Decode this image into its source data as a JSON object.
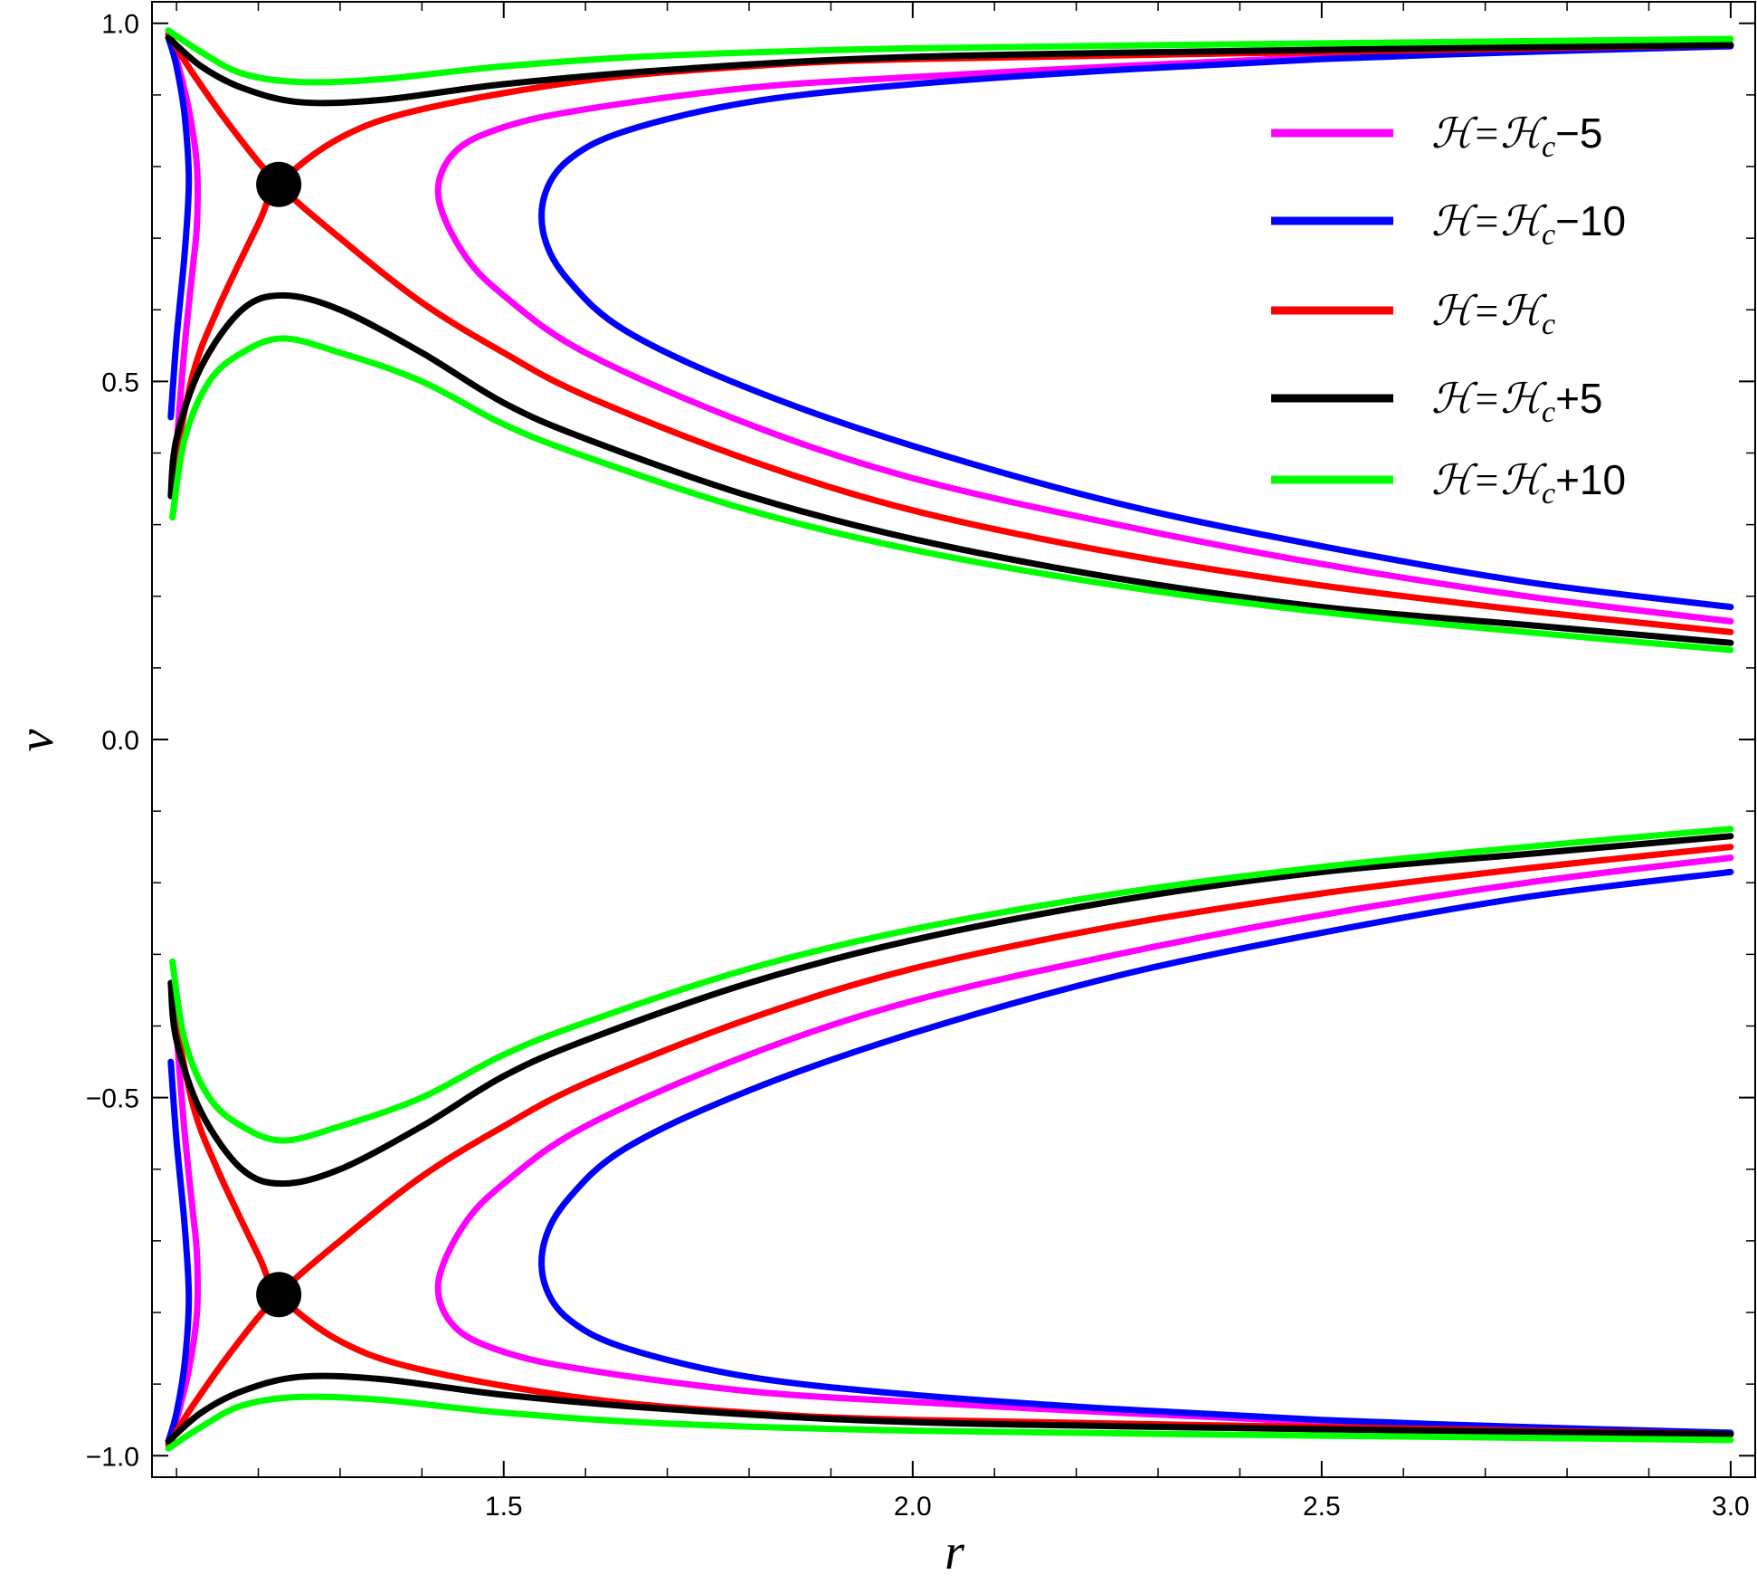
{
  "chart_data": {
    "type": "line",
    "title": "",
    "xlabel": "r",
    "ylabel": "v",
    "xlim": [
      1.07,
      3.03
    ],
    "ylim": [
      -1.03,
      1.03
    ],
    "x_major_ticks": [
      1.5,
      2.0,
      2.5,
      3.0
    ],
    "x_tick_labels": [
      "1.5",
      "2.0",
      "2.5",
      "3.0"
    ],
    "y_major_ticks": [
      -1.0,
      -0.5,
      0.0,
      0.5,
      1.0
    ],
    "y_tick_labels": [
      "−1.0",
      "−0.5",
      "0.0",
      "0.5",
      "1.0"
    ],
    "grid": false,
    "legend_position": "top-right",
    "critical_points": [
      {
        "x": 1.225,
        "y": 0.775
      },
      {
        "x": 1.225,
        "y": -0.775
      }
    ],
    "series": [
      {
        "name": "ℋ=ℋc−5",
        "color": "#ff00ff",
        "branches": [
          [
            [
              1.1,
              0.41
            ],
            [
              1.11,
              0.55
            ],
            [
              1.12,
              0.66
            ],
            [
              1.125,
              0.72
            ],
            [
              1.125,
              0.8
            ],
            [
              1.115,
              0.88
            ],
            [
              1.1,
              0.95
            ],
            [
              1.09,
              0.985
            ]
          ],
          [
            [
              3.0,
              0.165
            ],
            [
              2.75,
              0.2
            ],
            [
              2.5,
              0.245
            ],
            [
              2.25,
              0.3
            ],
            [
              2.0,
              0.365
            ],
            [
              1.8,
              0.44
            ],
            [
              1.6,
              0.54
            ],
            [
              1.5,
              0.62
            ],
            [
              1.45,
              0.68
            ],
            [
              1.42,
              0.76
            ],
            [
              1.44,
              0.82
            ],
            [
              1.5,
              0.855
            ],
            [
              1.6,
              0.88
            ],
            [
              1.8,
              0.91
            ],
            [
              2.0,
              0.925
            ],
            [
              2.25,
              0.94
            ],
            [
              2.5,
              0.953
            ],
            [
              2.75,
              0.962
            ],
            [
              3.0,
              0.97
            ]
          ],
          [
            [
              1.1,
              -0.41
            ],
            [
              1.11,
              -0.55
            ],
            [
              1.12,
              -0.66
            ],
            [
              1.125,
              -0.72
            ],
            [
              1.125,
              -0.8
            ],
            [
              1.115,
              -0.88
            ],
            [
              1.1,
              -0.95
            ],
            [
              1.09,
              -0.985
            ]
          ],
          [
            [
              3.0,
              -0.165
            ],
            [
              2.75,
              -0.2
            ],
            [
              2.5,
              -0.245
            ],
            [
              2.25,
              -0.3
            ],
            [
              2.0,
              -0.365
            ],
            [
              1.8,
              -0.44
            ],
            [
              1.6,
              -0.54
            ],
            [
              1.5,
              -0.62
            ],
            [
              1.45,
              -0.68
            ],
            [
              1.42,
              -0.76
            ],
            [
              1.44,
              -0.82
            ],
            [
              1.5,
              -0.855
            ],
            [
              1.6,
              -0.88
            ],
            [
              1.8,
              -0.91
            ],
            [
              2.0,
              -0.925
            ],
            [
              2.25,
              -0.94
            ],
            [
              2.5,
              -0.953
            ],
            [
              2.75,
              -0.962
            ],
            [
              3.0,
              -0.97
            ]
          ]
        ]
      },
      {
        "name": "ℋ=ℋc−10",
        "color": "#0000ff",
        "branches": [
          [
            [
              1.093,
              0.45
            ],
            [
              1.1,
              0.56
            ],
            [
              1.11,
              0.68
            ],
            [
              1.115,
              0.78
            ],
            [
              1.11,
              0.87
            ],
            [
              1.1,
              0.94
            ],
            [
              1.09,
              0.98
            ]
          ],
          [
            [
              3.0,
              0.185
            ],
            [
              2.75,
              0.22
            ],
            [
              2.5,
              0.27
            ],
            [
              2.25,
              0.33
            ],
            [
              2.0,
              0.41
            ],
            [
              1.8,
              0.49
            ],
            [
              1.65,
              0.57
            ],
            [
              1.58,
              0.64
            ],
            [
              1.55,
              0.7
            ],
            [
              1.55,
              0.76
            ],
            [
              1.58,
              0.81
            ],
            [
              1.65,
              0.85
            ],
            [
              1.8,
              0.89
            ],
            [
              2.0,
              0.915
            ],
            [
              2.25,
              0.935
            ],
            [
              2.5,
              0.95
            ],
            [
              2.75,
              0.96
            ],
            [
              3.0,
              0.968
            ]
          ],
          [
            [
              1.093,
              -0.45
            ],
            [
              1.1,
              -0.56
            ],
            [
              1.11,
              -0.68
            ],
            [
              1.115,
              -0.78
            ],
            [
              1.11,
              -0.87
            ],
            [
              1.1,
              -0.94
            ],
            [
              1.09,
              -0.98
            ]
          ],
          [
            [
              3.0,
              -0.185
            ],
            [
              2.75,
              -0.22
            ],
            [
              2.5,
              -0.27
            ],
            [
              2.25,
              -0.33
            ],
            [
              2.0,
              -0.41
            ],
            [
              1.8,
              -0.49
            ],
            [
              1.65,
              -0.57
            ],
            [
              1.58,
              -0.64
            ],
            [
              1.55,
              -0.7
            ],
            [
              1.55,
              -0.76
            ],
            [
              1.58,
              -0.81
            ],
            [
              1.65,
              -0.85
            ],
            [
              1.8,
              -0.89
            ],
            [
              2.0,
              -0.915
            ],
            [
              2.25,
              -0.935
            ],
            [
              2.5,
              -0.95
            ],
            [
              2.75,
              -0.96
            ],
            [
              3.0,
              -0.968
            ]
          ]
        ]
      },
      {
        "name": "ℋ=ℋc",
        "color": "#ff0000",
        "branches": [
          [
            [
              1.095,
              0.37
            ],
            [
              1.12,
              0.51
            ],
            [
              1.15,
              0.6
            ],
            [
              1.2,
              0.72
            ],
            [
              1.225,
              0.775
            ],
            [
              1.3,
              0.84
            ],
            [
              1.4,
              0.88
            ],
            [
              1.6,
              0.92
            ],
            [
              1.8,
              0.94
            ],
            [
              2.0,
              0.95
            ],
            [
              2.5,
              0.96
            ],
            [
              3.0,
              0.97
            ]
          ],
          [
            [
              1.09,
              0.985
            ],
            [
              1.12,
              0.93
            ],
            [
              1.17,
              0.85
            ],
            [
              1.225,
              0.775
            ],
            [
              1.3,
              0.7
            ],
            [
              1.4,
              0.61
            ],
            [
              1.5,
              0.54
            ],
            [
              1.6,
              0.48
            ],
            [
              1.8,
              0.39
            ],
            [
              2.0,
              0.32
            ],
            [
              2.25,
              0.26
            ],
            [
              2.5,
              0.215
            ],
            [
              2.75,
              0.18
            ],
            [
              3.0,
              0.15
            ]
          ],
          [
            [
              1.095,
              -0.37
            ],
            [
              1.12,
              -0.51
            ],
            [
              1.15,
              -0.6
            ],
            [
              1.2,
              -0.72
            ],
            [
              1.225,
              -0.775
            ],
            [
              1.3,
              -0.84
            ],
            [
              1.4,
              -0.88
            ],
            [
              1.6,
              -0.92
            ],
            [
              1.8,
              -0.94
            ],
            [
              2.0,
              -0.95
            ],
            [
              2.5,
              -0.96
            ],
            [
              3.0,
              -0.97
            ]
          ],
          [
            [
              1.09,
              -0.985
            ],
            [
              1.12,
              -0.93
            ],
            [
              1.17,
              -0.85
            ],
            [
              1.225,
              -0.775
            ],
            [
              1.3,
              -0.7
            ],
            [
              1.4,
              -0.61
            ],
            [
              1.5,
              -0.54
            ],
            [
              1.6,
              -0.48
            ],
            [
              1.8,
              -0.39
            ],
            [
              2.0,
              -0.32
            ],
            [
              2.25,
              -0.26
            ],
            [
              2.5,
              -0.215
            ],
            [
              2.75,
              -0.18
            ],
            [
              3.0,
              -0.15
            ]
          ]
        ]
      },
      {
        "name": "ℋ=ℋc+5",
        "color": "#000000",
        "branches": [
          [
            [
              1.093,
              0.34
            ],
            [
              1.1,
              0.42
            ],
            [
              1.13,
              0.52
            ],
            [
              1.18,
              0.6
            ],
            [
              1.23,
              0.62
            ],
            [
              1.3,
              0.6
            ],
            [
              1.4,
              0.54
            ],
            [
              1.5,
              0.47
            ],
            [
              1.6,
              0.42
            ],
            [
              1.8,
              0.34
            ],
            [
              2.0,
              0.28
            ],
            [
              2.25,
              0.225
            ],
            [
              2.5,
              0.185
            ],
            [
              2.75,
              0.16
            ],
            [
              3.0,
              0.135
            ]
          ],
          [
            [
              1.09,
              0.98
            ],
            [
              1.13,
              0.94
            ],
            [
              1.18,
              0.91
            ],
            [
              1.25,
              0.89
            ],
            [
              1.35,
              0.893
            ],
            [
              1.5,
              0.915
            ],
            [
              1.7,
              0.935
            ],
            [
              2.0,
              0.953
            ],
            [
              2.5,
              0.963
            ],
            [
              3.0,
              0.97
            ]
          ],
          [
            [
              1.093,
              -0.34
            ],
            [
              1.1,
              -0.42
            ],
            [
              1.13,
              -0.52
            ],
            [
              1.18,
              -0.6
            ],
            [
              1.23,
              -0.62
            ],
            [
              1.3,
              -0.6
            ],
            [
              1.4,
              -0.54
            ],
            [
              1.5,
              -0.47
            ],
            [
              1.6,
              -0.42
            ],
            [
              1.8,
              -0.34
            ],
            [
              2.0,
              -0.28
            ],
            [
              2.25,
              -0.225
            ],
            [
              2.5,
              -0.185
            ],
            [
              2.75,
              -0.16
            ],
            [
              3.0,
              -0.135
            ]
          ],
          [
            [
              1.09,
              -0.98
            ],
            [
              1.13,
              -0.94
            ],
            [
              1.18,
              -0.91
            ],
            [
              1.25,
              -0.89
            ],
            [
              1.35,
              -0.893
            ],
            [
              1.5,
              -0.915
            ],
            [
              1.7,
              -0.935
            ],
            [
              2.0,
              -0.953
            ],
            [
              2.5,
              -0.963
            ],
            [
              3.0,
              -0.97
            ]
          ]
        ]
      },
      {
        "name": "ℋ=ℋc+10",
        "color": "#00ff00",
        "branches": [
          [
            [
              1.095,
              0.31
            ],
            [
              1.11,
              0.42
            ],
            [
              1.14,
              0.5
            ],
            [
              1.18,
              0.54
            ],
            [
              1.23,
              0.56
            ],
            [
              1.3,
              0.54
            ],
            [
              1.4,
              0.5
            ],
            [
              1.5,
              0.44
            ],
            [
              1.6,
              0.395
            ],
            [
              1.8,
              0.32
            ],
            [
              2.0,
              0.265
            ],
            [
              2.25,
              0.215
            ],
            [
              2.5,
              0.178
            ],
            [
              2.75,
              0.15
            ],
            [
              3.0,
              0.125
            ]
          ],
          [
            [
              1.09,
              0.99
            ],
            [
              1.13,
              0.96
            ],
            [
              1.18,
              0.93
            ],
            [
              1.25,
              0.918
            ],
            [
              1.35,
              0.922
            ],
            [
              1.5,
              0.94
            ],
            [
              1.7,
              0.955
            ],
            [
              2.0,
              0.965
            ],
            [
              2.5,
              0.972
            ],
            [
              3.0,
              0.978
            ]
          ],
          [
            [
              1.095,
              -0.31
            ],
            [
              1.11,
              -0.42
            ],
            [
              1.14,
              -0.5
            ],
            [
              1.18,
              -0.54
            ],
            [
              1.23,
              -0.56
            ],
            [
              1.3,
              -0.54
            ],
            [
              1.4,
              -0.5
            ],
            [
              1.5,
              -0.44
            ],
            [
              1.6,
              -0.395
            ],
            [
              1.8,
              -0.32
            ],
            [
              2.0,
              -0.265
            ],
            [
              2.25,
              -0.215
            ],
            [
              2.5,
              -0.178
            ],
            [
              2.75,
              -0.15
            ],
            [
              3.0,
              -0.125
            ]
          ],
          [
            [
              1.09,
              -0.99
            ],
            [
              1.13,
              -0.96
            ],
            [
              1.18,
              -0.93
            ],
            [
              1.25,
              -0.918
            ],
            [
              1.35,
              -0.922
            ],
            [
              1.5,
              -0.94
            ],
            [
              1.7,
              -0.955
            ],
            [
              2.0,
              -0.965
            ],
            [
              2.5,
              -0.972
            ],
            [
              3.0,
              -0.978
            ]
          ]
        ]
      }
    ],
    "legend": [
      {
        "prefix": "ℋ=ℋ",
        "sub": "c",
        "suffix": "−5",
        "color": "#ff00ff"
      },
      {
        "prefix": "ℋ=ℋ",
        "sub": "c",
        "suffix": "−10",
        "color": "#0000ff"
      },
      {
        "prefix": "ℋ=ℋ",
        "sub": "c",
        "suffix": "",
        "color": "#ff0000"
      },
      {
        "prefix": "ℋ=ℋ",
        "sub": "c",
        "suffix": "+5",
        "color": "#000000"
      },
      {
        "prefix": "ℋ=ℋ",
        "sub": "c",
        "suffix": "+10",
        "color": "#00ff00"
      }
    ]
  }
}
